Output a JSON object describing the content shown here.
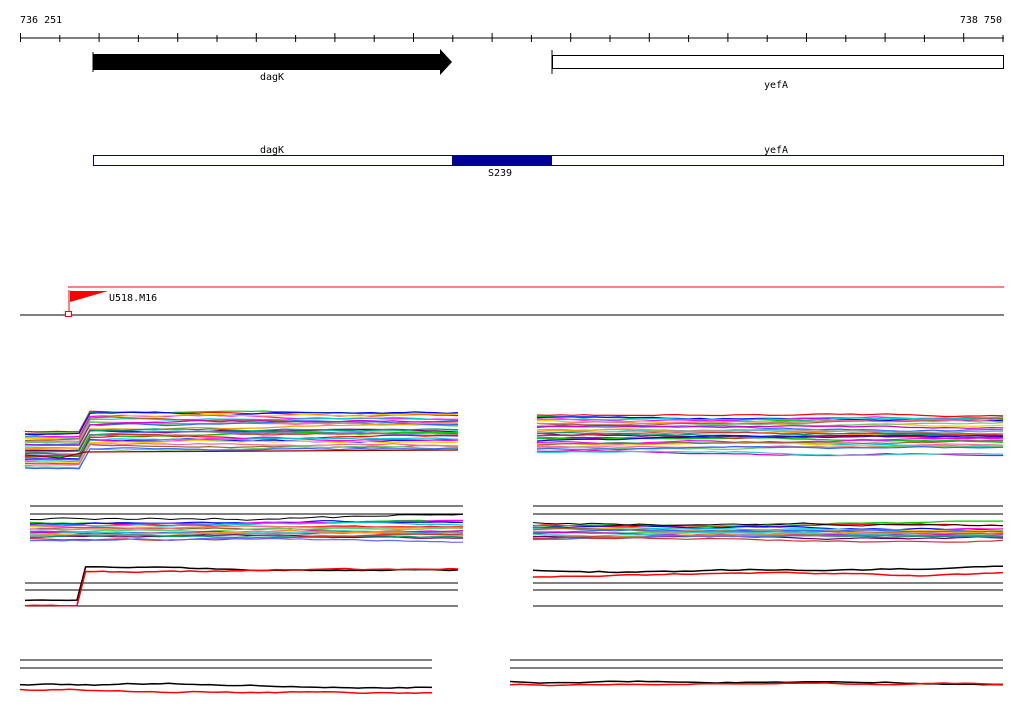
{
  "ruler": {
    "start_label": "736 251",
    "end_label": "738 750"
  },
  "genes": [
    {
      "name": "dagK",
      "strand": "+",
      "style": "filled-arrow"
    },
    {
      "name": "yefA",
      "strand": "+",
      "style": "open-box"
    }
  ],
  "transcripts": {
    "labels": [
      "dagK",
      "yefA"
    ],
    "highlight_label": "S239"
  },
  "marker": {
    "label": "U518.M16",
    "color": "#ff0000"
  },
  "colors": {
    "black": "#000000",
    "red": "#ff0000",
    "navy": "#000099",
    "outline_blue": "#000080"
  }
}
